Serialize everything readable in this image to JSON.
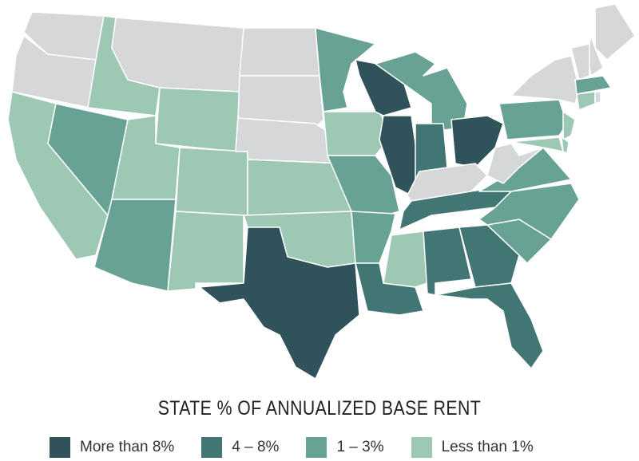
{
  "title": "STATE % OF ANNUALIZED BASE RENT",
  "legend": [
    {
      "label": "More than 8%",
      "color": "#30525a"
    },
    {
      "label": "4 – 8%",
      "color": "#427675"
    },
    {
      "label": "1 – 3%",
      "color": "#68a294"
    },
    {
      "label": "Less than 1%",
      "color": "#9dc8b3"
    }
  ],
  "no_data_color": "#d5d7d8",
  "states": {
    "WI": 0,
    "IL": 0,
    "OH": 0,
    "TX": 0,
    "IN": 1,
    "TN": 1,
    "AL": 1,
    "GA": 1,
    "FL": 1,
    "LA": 1,
    "MN": 2,
    "MI": 2,
    "NV": 2,
    "AZ": 2,
    "MO": 2,
    "AR": 2,
    "NC": 2,
    "SC": 2,
    "VA": 2,
    "PA": 2,
    "MA": 2,
    "ID": 3,
    "WY": 3,
    "UT": 3,
    "CO": 3,
    "NM": 3,
    "KS": 3,
    "OK": 3,
    "IA": 3,
    "CA": 3,
    "MS": 3,
    "NJ": 3,
    "CT": 3,
    "MD": 3,
    "DE": 3,
    "WA": null,
    "OR": null,
    "MT": null,
    "ND": null,
    "SD": null,
    "NE": null,
    "NY": null,
    "VT": null,
    "NH": null,
    "ME": null,
    "WV": null,
    "KY": null,
    "RI": null
  }
}
